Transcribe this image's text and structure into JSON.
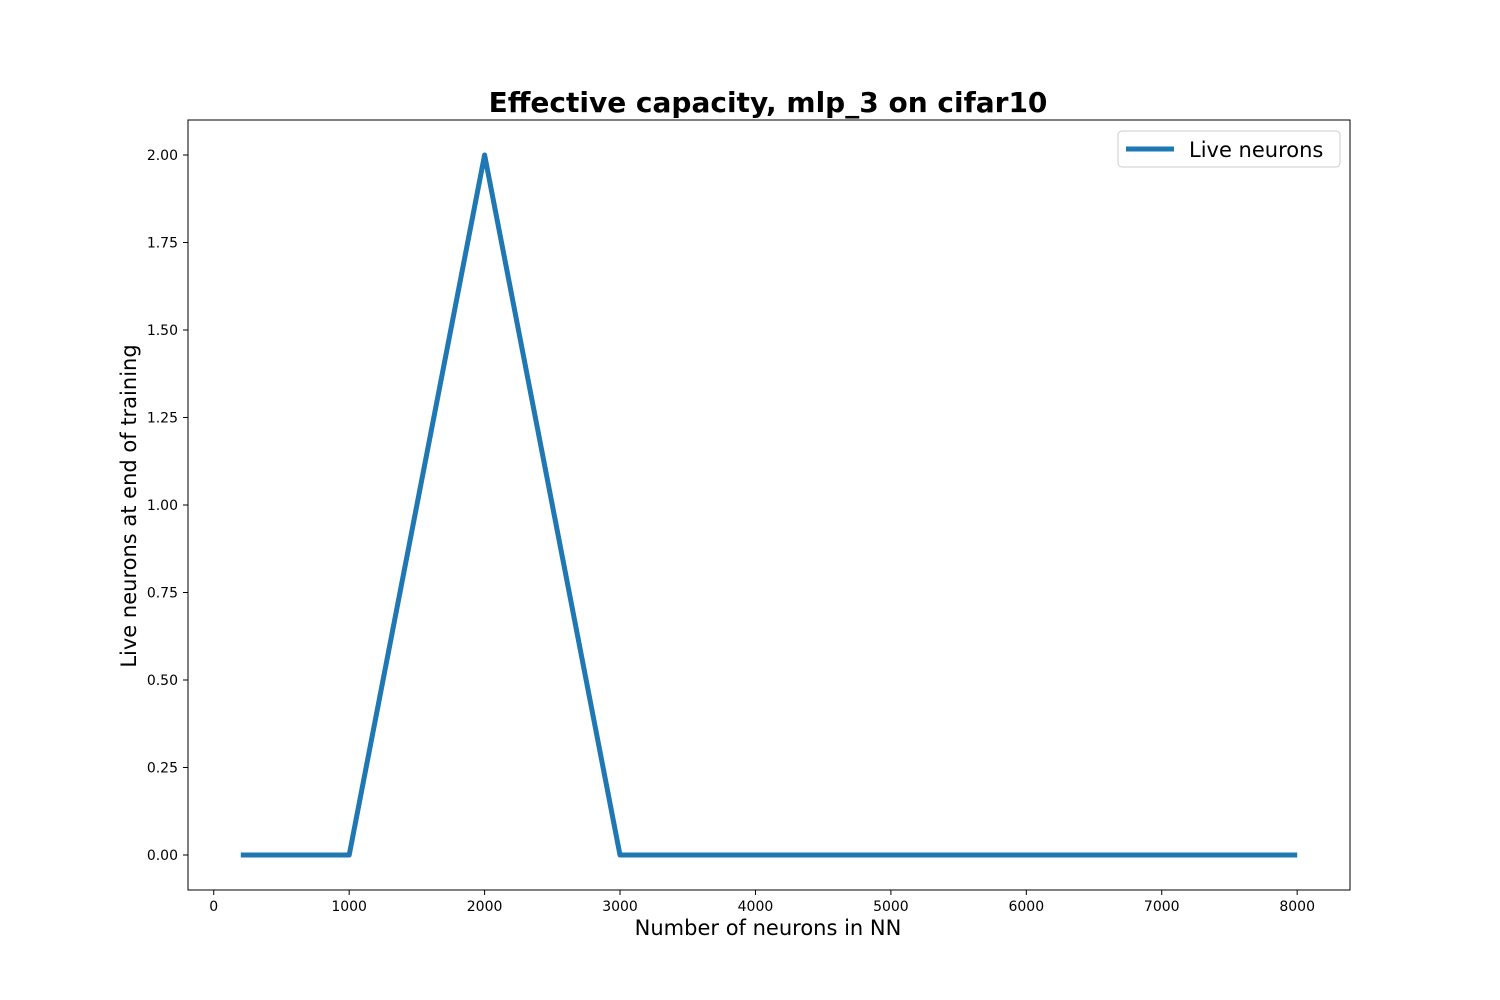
{
  "chart_data": {
    "type": "line",
    "title": "Effective capacity, mlp_3 on cifar10",
    "xlabel": "Number of neurons in NN",
    "ylabel": "Live neurons at end of training",
    "xlim": [
      -190,
      8390
    ],
    "ylim": [
      -0.1,
      2.1
    ],
    "x_ticks": [
      0,
      1000,
      2000,
      3000,
      4000,
      5000,
      6000,
      7000,
      8000
    ],
    "x_tick_labels": [
      "0",
      "1000",
      "2000",
      "3000",
      "4000",
      "5000",
      "6000",
      "7000",
      "8000"
    ],
    "y_ticks": [
      0,
      0.25,
      0.5,
      0.75,
      1.0,
      1.25,
      1.5,
      1.75,
      2.0
    ],
    "y_tick_labels": [
      "0.00",
      "0.25",
      "0.50",
      "0.75",
      "1.00",
      "1.25",
      "1.50",
      "1.75",
      "2.00"
    ],
    "grid": false,
    "legend_position": "top-right",
    "series": [
      {
        "name": "Live neurons",
        "color": "#1f77b4",
        "x": [
          200,
          1000,
          2000,
          3000,
          4000,
          5000,
          6000,
          7000,
          8000
        ],
        "y": [
          0,
          0,
          2,
          0,
          0,
          0,
          0,
          0,
          0
        ]
      }
    ]
  }
}
